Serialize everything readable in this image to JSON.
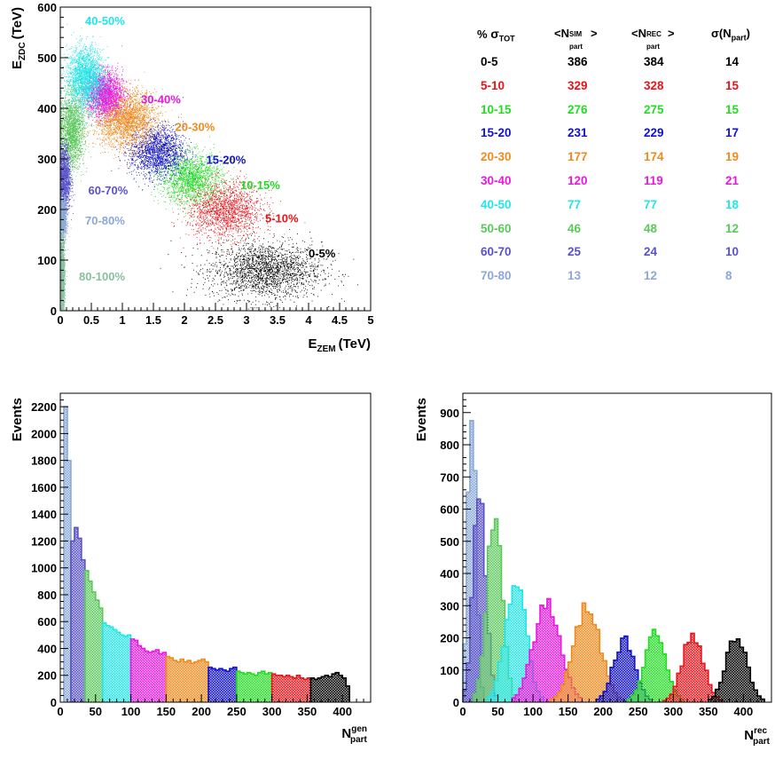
{
  "colors": {
    "0-5": "#000000",
    "5-10": "#e8141a",
    "10-15": "#22dd22",
    "15-20": "#1212c8",
    "20-30": "#f08a1c",
    "30-40": "#e818e0",
    "40-50": "#22e6e6",
    "50-60": "#5cc85c",
    "60-70": "#5a52c8",
    "70-80": "#8aa8d8",
    "80-100": "#88c0a0"
  },
  "chart_data": [
    {
      "type": "scatter",
      "xlabel_main": "E",
      "xlabel_sub": "ZEM",
      "xlabel_unit": "(TeV)",
      "ylabel_main": "E",
      "ylabel_sub": "ZDC",
      "ylabel_unit": "(TeV)",
      "xlim": [
        0,
        5
      ],
      "ylim": [
        0,
        600
      ],
      "xticks": [
        0,
        0.5,
        1,
        1.5,
        2,
        2.5,
        3,
        3.5,
        4,
        4.5,
        5
      ],
      "yticks": [
        0,
        100,
        200,
        300,
        400,
        500,
        600
      ],
      "xtick_labels": [
        "0",
        "0.5",
        "1",
        "1.5",
        "2",
        "2.5",
        "3",
        "3.5",
        "4",
        "4.5",
        "5"
      ],
      "ytick_labels": [
        "0",
        "100",
        "200",
        "300",
        "400",
        "500",
        "600"
      ],
      "clusters": [
        {
          "label": "0-5%",
          "key": "0-5",
          "cx": 3.3,
          "cy": 80,
          "sx": 0.45,
          "sy": 28,
          "n": 2200,
          "label_x": 4.0,
          "label_y": 105
        },
        {
          "label": "5-10%",
          "key": "5-10",
          "cx": 2.65,
          "cy": 200,
          "sx": 0.3,
          "sy": 28,
          "n": 1800,
          "label_x": 3.3,
          "label_y": 175
        },
        {
          "label": "10-15%",
          "key": "10-15",
          "cx": 2.1,
          "cy": 262,
          "sx": 0.25,
          "sy": 25,
          "n": 1800,
          "label_x": 2.9,
          "label_y": 240
        },
        {
          "label": "15-20%",
          "key": "15-20",
          "cx": 1.55,
          "cy": 315,
          "sx": 0.22,
          "sy": 25,
          "n": 1800,
          "label_x": 2.35,
          "label_y": 290
        },
        {
          "label": "20-30%",
          "key": "20-30",
          "cx": 1.05,
          "cy": 380,
          "sx": 0.25,
          "sy": 28,
          "n": 2600,
          "label_x": 1.85,
          "label_y": 355
        },
        {
          "label": "30-40%",
          "key": "30-40",
          "cx": 0.7,
          "cy": 430,
          "sx": 0.15,
          "sy": 22,
          "n": 2200,
          "label_x": 1.3,
          "label_y": 410
        },
        {
          "label": "40-50%",
          "key": "40-50",
          "cx": 0.4,
          "cy": 460,
          "sx": 0.15,
          "sy": 30,
          "n": 2400,
          "label_x": 0.4,
          "label_y": 565
        },
        {
          "label": "",
          "key": "50-60",
          "cx": 0.18,
          "cy": 355,
          "sx": 0.1,
          "sy": 35,
          "n": 2000,
          "label_x": 0,
          "label_y": 0
        },
        {
          "label": "60-70%",
          "key": "60-70",
          "cx": 0.06,
          "cy": 262,
          "sx": 0.05,
          "sy": 32,
          "n": 1600,
          "label_x": 0.45,
          "label_y": 230
        },
        {
          "label": "70-80%",
          "key": "70-80",
          "cx": 0.04,
          "cy": 182,
          "sx": 0.03,
          "sy": 20,
          "n": 1000,
          "label_x": 0.4,
          "label_y": 170
        },
        {
          "label": "80-100%",
          "key": "80-100",
          "cx": 0.03,
          "cy": 65,
          "sx": 0.02,
          "sy": 40,
          "n": 1600,
          "label_x": 0.3,
          "label_y": 60
        }
      ]
    },
    {
      "type": "bar",
      "name": "histogram-gen",
      "xlabel_main": "N",
      "xlabel_sup": "gen",
      "xlabel_sub": "part",
      "ylabel": "Events",
      "xlim": [
        0,
        440
      ],
      "ylim": [
        0,
        2300
      ],
      "xticks": [
        0,
        50,
        100,
        150,
        200,
        250,
        300,
        350,
        400
      ],
      "yticks": [
        0,
        200,
        400,
        600,
        800,
        1000,
        1200,
        1400,
        1600,
        1800,
        2000,
        2200
      ],
      "bin_width": 5,
      "segments": [
        {
          "key": "70-80",
          "x0": 5,
          "values": [
            2200,
            1800
          ]
        },
        {
          "key": "60-70",
          "x0": 15,
          "values": [
            1200,
            1300,
            1220,
            1060
          ]
        },
        {
          "key": "50-60",
          "x0": 35,
          "values": [
            980,
            900,
            820,
            760,
            700
          ]
        },
        {
          "key": "40-50",
          "x0": 60,
          "values": [
            590,
            570,
            560,
            540,
            520,
            500,
            490,
            500
          ]
        },
        {
          "key": "30-40",
          "x0": 100,
          "values": [
            470,
            460,
            420,
            400,
            380,
            370,
            380,
            390,
            360,
            370
          ]
        },
        {
          "key": "20-30",
          "x0": 150,
          "values": [
            340,
            330,
            310,
            300,
            320,
            300,
            310,
            290,
            300,
            310,
            320,
            300
          ]
        },
        {
          "key": "15-20",
          "x0": 210,
          "values": [
            260,
            250,
            240,
            250,
            240,
            230,
            250,
            260
          ]
        },
        {
          "key": "10-15",
          "x0": 250,
          "values": [
            230,
            220,
            210,
            220,
            210,
            200,
            220,
            230,
            210,
            220
          ]
        },
        {
          "key": "5-10",
          "x0": 300,
          "values": [
            210,
            200,
            200,
            190,
            200,
            190,
            180,
            200,
            180,
            170,
            180
          ]
        },
        {
          "key": "0-5",
          "x0": 355,
          "values": [
            180,
            170,
            180,
            190,
            200,
            190,
            210,
            220,
            200,
            180,
            120
          ]
        }
      ]
    },
    {
      "type": "bar",
      "name": "histogram-rec",
      "xlabel_main": "N",
      "xlabel_sup": "rec",
      "xlabel_sub": "part",
      "ylabel": "Events",
      "xlim": [
        0,
        440
      ],
      "ylim": [
        0,
        960
      ],
      "xticks": [
        0,
        50,
        100,
        150,
        200,
        250,
        300,
        350,
        400
      ],
      "yticks": [
        0,
        100,
        200,
        300,
        400,
        500,
        600,
        700,
        800,
        900
      ],
      "bin_width": 5,
      "peaks": [
        {
          "key": "70-80",
          "mean": 13,
          "sigma": 6,
          "amp": 910
        },
        {
          "key": "60-70",
          "mean": 24,
          "sigma": 9,
          "amp": 680
        },
        {
          "key": "50-60",
          "mean": 45,
          "sigma": 11,
          "amp": 560
        },
        {
          "key": "40-50",
          "mean": 75,
          "sigma": 15,
          "amp": 370
        },
        {
          "key": "30-40",
          "mean": 120,
          "sigma": 19,
          "amp": 310
        },
        {
          "key": "20-30",
          "mean": 177,
          "sigma": 19,
          "amp": 290
        },
        {
          "key": "15-20",
          "mean": 230,
          "sigma": 15,
          "amp": 195
        },
        {
          "key": "10-15",
          "mean": 275,
          "sigma": 15,
          "amp": 210
        },
        {
          "key": "5-10",
          "mean": 328,
          "sigma": 15,
          "amp": 210
        },
        {
          "key": "0-5",
          "mean": 390,
          "sigma": 15,
          "amp": 200
        }
      ]
    }
  ],
  "table": {
    "header": {
      "col0": "%",
      "col0_sym": "σ",
      "col0_sub": "TOT",
      "col1_pre": "<N",
      "col1_sup": "SIM",
      "col1_sub": "part",
      "col1_post": ">",
      "col2_pre": "<N",
      "col2_sup": "REC",
      "col2_sub": "part",
      "col2_post": ">",
      "col3_pre": "σ(N",
      "col3_sub": "part",
      "col3_post": ")"
    },
    "rows": [
      {
        "key": "0-5",
        "class": "0-5",
        "sim": "386",
        "rec": "384",
        "sigma": "14"
      },
      {
        "key": "5-10",
        "class": "5-10",
        "sim": "329",
        "rec": "328",
        "sigma": "15"
      },
      {
        "key": "10-15",
        "class": "10-15",
        "sim": "276",
        "rec": "275",
        "sigma": "15"
      },
      {
        "key": "15-20",
        "class": "15-20",
        "sim": "231",
        "rec": "229",
        "sigma": "17"
      },
      {
        "key": "20-30",
        "class": "20-30",
        "sim": "177",
        "rec": "174",
        "sigma": "19"
      },
      {
        "key": "30-40",
        "class": "30-40",
        "sim": "120",
        "rec": "119",
        "sigma": "21"
      },
      {
        "key": "40-50",
        "class": "40-50",
        "sim": "77",
        "rec": "77",
        "sigma": "18"
      },
      {
        "key": "50-60",
        "class": "50-60",
        "sim": "46",
        "rec": "48",
        "sigma": "12"
      },
      {
        "key": "60-70",
        "class": "60-70",
        "sim": "25",
        "rec": "24",
        "sigma": "10"
      },
      {
        "key": "70-80",
        "class": "70-80",
        "sim": "13",
        "rec": "12",
        "sigma": "8"
      }
    ]
  }
}
